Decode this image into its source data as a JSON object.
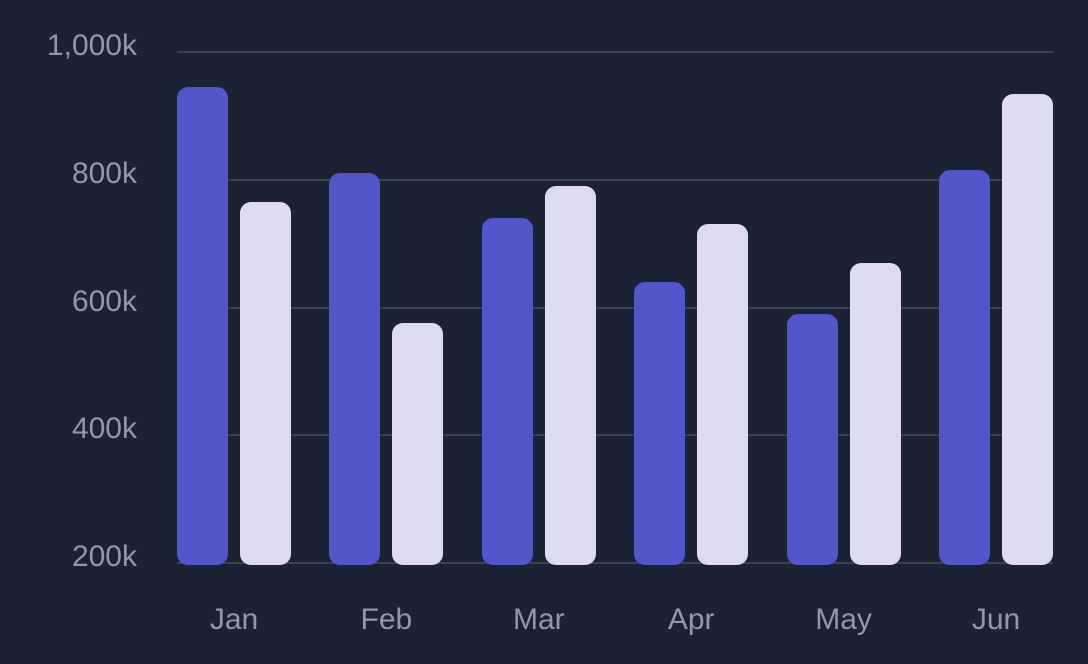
{
  "chart_data": {
    "type": "bar",
    "title": "",
    "categories": [
      "Jan",
      "Feb",
      "Mar",
      "Apr",
      "May",
      "Jun"
    ],
    "series": [
      {
        "name": "series-primary",
        "color": "#5355cb",
        "values": [
          945,
          810,
          740,
          640,
          590,
          815
        ]
      },
      {
        "name": "series-secondary",
        "color": "#dcdbf2",
        "values": [
          765,
          575,
          790,
          730,
          670,
          935
        ]
      }
    ],
    "value_unit": "k",
    "y_axis": {
      "min": 200,
      "max": 1000,
      "ticks": [
        {
          "label": "1,000k",
          "value": 1000
        },
        {
          "label": "800k",
          "value": 800
        },
        {
          "label": "600k",
          "value": 600
        },
        {
          "label": "400k",
          "value": 400
        },
        {
          "label": "200k",
          "value": 200
        }
      ]
    },
    "x_axis": {
      "ticks": [
        "Jan",
        "Feb",
        "Mar",
        "Apr",
        "May",
        "Jun"
      ]
    },
    "grid": true,
    "legend": "none",
    "colors": {
      "background": "#1b2233",
      "gridline": "#3a4153",
      "tick_text": "#9298a7",
      "bar_primary": "#5355cb",
      "bar_secondary": "#dcdbf2"
    }
  }
}
